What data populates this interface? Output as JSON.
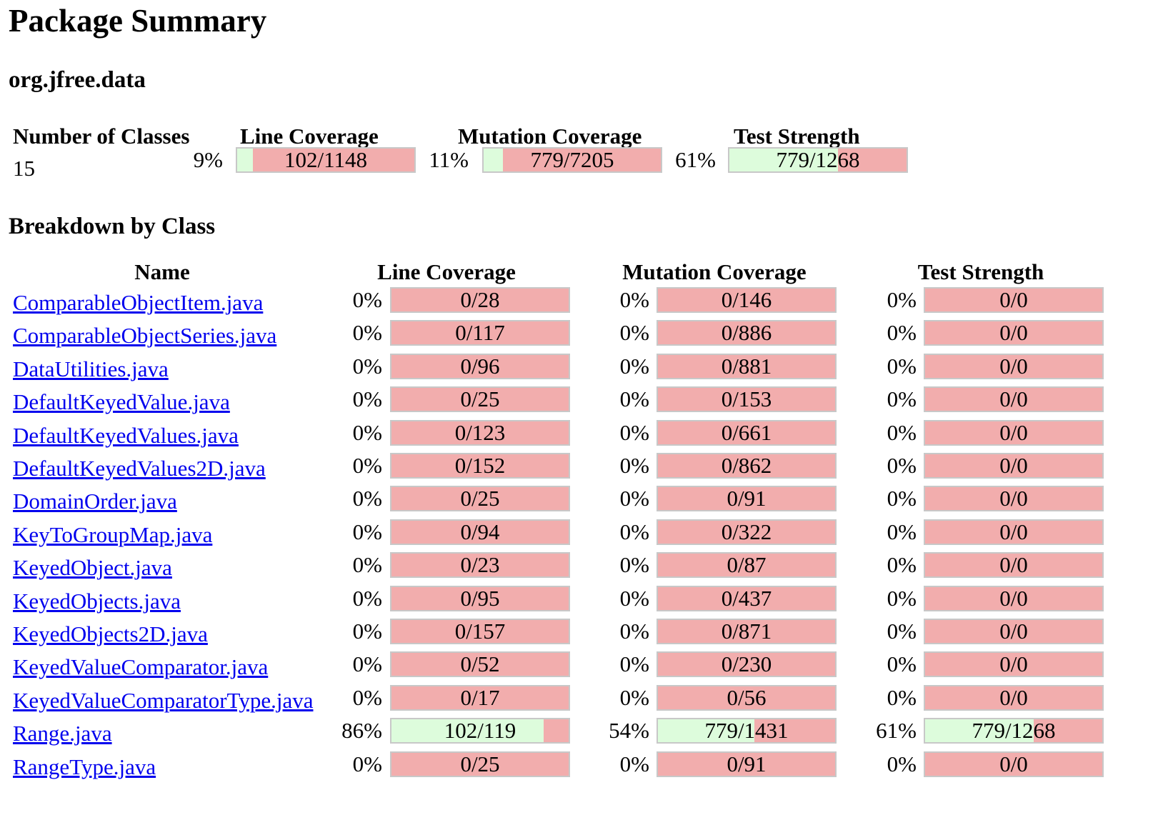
{
  "page": {
    "title": "Package Summary",
    "package_name": "org.jfree.data",
    "breakdown_title": "Breakdown by Class"
  },
  "summary": {
    "headers": {
      "classes": "Number of Classes",
      "line": "Line Coverage",
      "mutation": "Mutation Coverage",
      "strength": "Test Strength"
    },
    "num_classes": "15",
    "line": {
      "pct": "9%",
      "ratio": "102/1148",
      "fraction": 0.089
    },
    "mutation": {
      "pct": "11%",
      "ratio": "779/7205",
      "fraction": 0.108
    },
    "strength": {
      "pct": "61%",
      "ratio": "779/1268",
      "fraction": 0.614
    }
  },
  "table": {
    "headers": {
      "name": "Name",
      "line": "Line Coverage",
      "mutation": "Mutation Coverage",
      "strength": "Test Strength"
    },
    "rows": [
      {
        "name": "ComparableObjectItem.java",
        "line_pct": "0%",
        "line": "0/28",
        "line_f": 0,
        "mut_pct": "0%",
        "mut": "0/146",
        "mut_f": 0,
        "str_pct": "0%",
        "str": "0/0",
        "str_f": 0
      },
      {
        "name": "ComparableObjectSeries.java",
        "line_pct": "0%",
        "line": "0/117",
        "line_f": 0,
        "mut_pct": "0%",
        "mut": "0/886",
        "mut_f": 0,
        "str_pct": "0%",
        "str": "0/0",
        "str_f": 0
      },
      {
        "name": "DataUtilities.java",
        "line_pct": "0%",
        "line": "0/96",
        "line_f": 0,
        "mut_pct": "0%",
        "mut": "0/881",
        "mut_f": 0,
        "str_pct": "0%",
        "str": "0/0",
        "str_f": 0
      },
      {
        "name": "DefaultKeyedValue.java",
        "line_pct": "0%",
        "line": "0/25",
        "line_f": 0,
        "mut_pct": "0%",
        "mut": "0/153",
        "mut_f": 0,
        "str_pct": "0%",
        "str": "0/0",
        "str_f": 0
      },
      {
        "name": "DefaultKeyedValues.java",
        "line_pct": "0%",
        "line": "0/123",
        "line_f": 0,
        "mut_pct": "0%",
        "mut": "0/661",
        "mut_f": 0,
        "str_pct": "0%",
        "str": "0/0",
        "str_f": 0
      },
      {
        "name": "DefaultKeyedValues2D.java",
        "line_pct": "0%",
        "line": "0/152",
        "line_f": 0,
        "mut_pct": "0%",
        "mut": "0/862",
        "mut_f": 0,
        "str_pct": "0%",
        "str": "0/0",
        "str_f": 0
      },
      {
        "name": "DomainOrder.java",
        "line_pct": "0%",
        "line": "0/25",
        "line_f": 0,
        "mut_pct": "0%",
        "mut": "0/91",
        "mut_f": 0,
        "str_pct": "0%",
        "str": "0/0",
        "str_f": 0
      },
      {
        "name": "KeyToGroupMap.java",
        "line_pct": "0%",
        "line": "0/94",
        "line_f": 0,
        "mut_pct": "0%",
        "mut": "0/322",
        "mut_f": 0,
        "str_pct": "0%",
        "str": "0/0",
        "str_f": 0
      },
      {
        "name": "KeyedObject.java",
        "line_pct": "0%",
        "line": "0/23",
        "line_f": 0,
        "mut_pct": "0%",
        "mut": "0/87",
        "mut_f": 0,
        "str_pct": "0%",
        "str": "0/0",
        "str_f": 0
      },
      {
        "name": "KeyedObjects.java",
        "line_pct": "0%",
        "line": "0/95",
        "line_f": 0,
        "mut_pct": "0%",
        "mut": "0/437",
        "mut_f": 0,
        "str_pct": "0%",
        "str": "0/0",
        "str_f": 0
      },
      {
        "name": "KeyedObjects2D.java",
        "line_pct": "0%",
        "line": "0/157",
        "line_f": 0,
        "mut_pct": "0%",
        "mut": "0/871",
        "mut_f": 0,
        "str_pct": "0%",
        "str": "0/0",
        "str_f": 0
      },
      {
        "name": "KeyedValueComparator.java",
        "line_pct": "0%",
        "line": "0/52",
        "line_f": 0,
        "mut_pct": "0%",
        "mut": "0/230",
        "mut_f": 0,
        "str_pct": "0%",
        "str": "0/0",
        "str_f": 0
      },
      {
        "name": "KeyedValueComparatorType.java",
        "line_pct": "0%",
        "line": "0/17",
        "line_f": 0,
        "mut_pct": "0%",
        "mut": "0/56",
        "mut_f": 0,
        "str_pct": "0%",
        "str": "0/0",
        "str_f": 0
      },
      {
        "name": "Range.java",
        "line_pct": "86%",
        "line": "102/119",
        "line_f": 0.857,
        "mut_pct": "54%",
        "mut": "779/1431",
        "mut_f": 0.544,
        "str_pct": "61%",
        "str": "779/1268",
        "str_f": 0.614
      },
      {
        "name": "RangeType.java",
        "line_pct": "0%",
        "line": "0/25",
        "line_f": 0,
        "mut_pct": "0%",
        "mut": "0/91",
        "mut_f": 0,
        "str_pct": "0%",
        "str": "0/0",
        "str_f": 0
      }
    ]
  },
  "colors": {
    "covered": "#ddfcdc",
    "uncovered": "#f2adad",
    "link": "#0000ee"
  }
}
